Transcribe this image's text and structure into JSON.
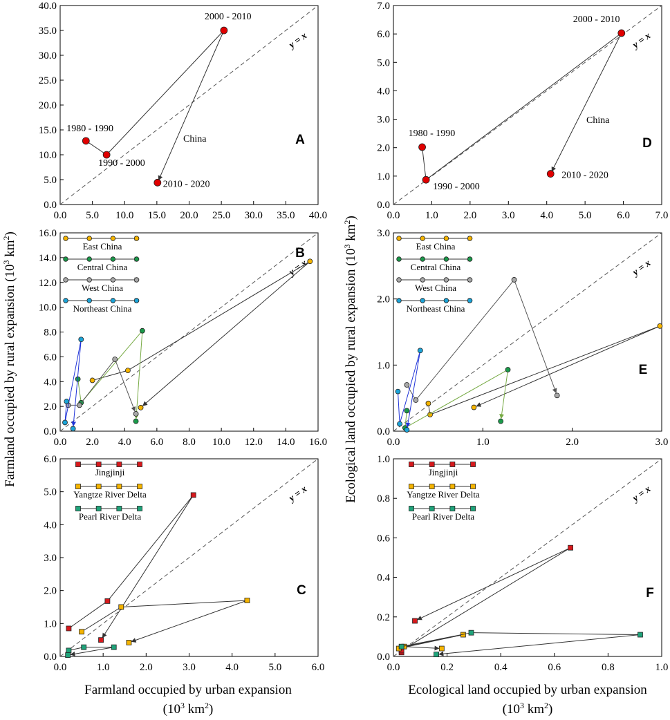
{
  "figure": {
    "y_label_left": "Farmland occupied by rural expansion (10",
    "y_label_right": "Ecological land occupied by rural expansion (10",
    "y_label_sup": "3",
    "y_label_tail": " km",
    "y_label_sup2": "2",
    "y_label_close": ")",
    "x_label_left_line1": "Farmland occupied by urban expansion",
    "x_label_right_line1": "Ecological land occupied by urban expansion",
    "x_label_line2_open": "(10",
    "x_label_line2_sup": "3",
    "x_label_line2_tail": " km",
    "x_label_line2_sup2": "2",
    "x_label_line2_close": ")",
    "diag_label": "y = x"
  },
  "colors": {
    "east": "#f5b400",
    "central": "#1a9a4a",
    "west": "#a8a8a8",
    "northeast": "#1ba4d8",
    "jingjinji": "#d7191c",
    "yangtze": "#f5b400",
    "pearl": "#1fa37a",
    "china": "#e00000",
    "blue_line": "#1f33d8",
    "green_line": "#77aa44"
  },
  "chart_data": [
    {
      "panel": "A",
      "type": "line",
      "xlim": [
        0,
        40
      ],
      "ylim": [
        0,
        40
      ],
      "xticks": [
        "0.0",
        "5.0",
        "10.0",
        "15.0",
        "20.0",
        "25.0",
        "30.0",
        "35.0",
        "40.0"
      ],
      "yticks": [
        "0.0",
        "5.0",
        "10.0",
        "15.0",
        "20.0",
        "25.0",
        "30.0",
        "35.0",
        "40.0"
      ],
      "series": [
        {
          "name": "China",
          "label": "China",
          "marker": "circle",
          "color": "#e00000",
          "line": "#333333",
          "points": [
            {
              "x": 4.0,
              "y": 12.8,
              "label": "1980 - 1990"
            },
            {
              "x": 7.2,
              "y": 10.0,
              "label": "1990 - 2000"
            },
            {
              "x": 25.4,
              "y": 35.0,
              "label": "2000 - 2010"
            },
            {
              "x": 15.1,
              "y": 4.4,
              "label": "2010 - 2020"
            }
          ]
        }
      ]
    },
    {
      "panel": "D",
      "type": "line",
      "xlim": [
        0,
        7
      ],
      "ylim": [
        0,
        7
      ],
      "xticks": [
        "0.0",
        "1.0",
        "2.0",
        "3.0",
        "4.0",
        "5.0",
        "6.0",
        "7.0"
      ],
      "yticks": [
        "0.0",
        "1.0",
        "2.0",
        "3.0",
        "4.0",
        "5.0",
        "6.0",
        "7.0"
      ],
      "series": [
        {
          "name": "China",
          "label": "China",
          "marker": "circle",
          "color": "#e00000",
          "line": "#333333",
          "points": [
            {
              "x": 0.75,
              "y": 2.02,
              "label": "1980 - 1990"
            },
            {
              "x": 0.85,
              "y": 0.87,
              "label": "1990 - 2000"
            },
            {
              "x": 5.95,
              "y": 6.03,
              "label": "2000 - 2010"
            },
            {
              "x": 4.1,
              "y": 1.08,
              "label": "2010 - 2020"
            }
          ]
        }
      ]
    },
    {
      "panel": "B",
      "type": "line",
      "xlim": [
        0,
        16
      ],
      "ylim": [
        0,
        16
      ],
      "xticks": [
        "0.0",
        "2.0",
        "4.0",
        "6.0",
        "8.0",
        "10.0",
        "12.0",
        "14.0",
        "16.0"
      ],
      "yticks": [
        "0.0",
        "2.0",
        "4.0",
        "6.0",
        "8.0",
        "10.0",
        "12.0",
        "14.0",
        "16.0"
      ],
      "legend": [
        "East China",
        "Central China",
        "West China",
        "Northeast China"
      ],
      "series": [
        {
          "name": "East China",
          "marker": "circle",
          "color": "#f5b400",
          "line": "#333333",
          "points": [
            {
              "x": 2.0,
              "y": 4.1
            },
            {
              "x": 4.2,
              "y": 4.9
            },
            {
              "x": 15.5,
              "y": 13.7
            },
            {
              "x": 5.0,
              "y": 1.9
            }
          ]
        },
        {
          "name": "Central China",
          "marker": "circle",
          "color": "#1a9a4a",
          "line": "#77aa44",
          "points": [
            {
              "x": 1.1,
              "y": 4.2
            },
            {
              "x": 1.3,
              "y": 2.3
            },
            {
              "x": 5.1,
              "y": 8.1
            },
            {
              "x": 4.7,
              "y": 0.8
            }
          ]
        },
        {
          "name": "West China",
          "marker": "circle",
          "color": "#a8a8a8",
          "line": "#555555",
          "points": [
            {
              "x": 0.5,
              "y": 2.1
            },
            {
              "x": 1.2,
              "y": 2.1
            },
            {
              "x": 3.4,
              "y": 5.8
            },
            {
              "x": 4.7,
              "y": 1.4
            }
          ]
        },
        {
          "name": "Northeast China",
          "marker": "circle",
          "color": "#1ba4d8",
          "line": "#1f33d8",
          "points": [
            {
              "x": 0.4,
              "y": 2.4
            },
            {
              "x": 0.3,
              "y": 0.7
            },
            {
              "x": 1.3,
              "y": 7.4
            },
            {
              "x": 0.8,
              "y": 0.2
            }
          ]
        }
      ]
    },
    {
      "panel": "E",
      "type": "line",
      "xlim": [
        0,
        3
      ],
      "ylim": [
        0,
        3
      ],
      "xticks": [
        "0.0",
        "1.0",
        "2.0",
        "3.0"
      ],
      "yticks": [
        "0.0",
        "1.0",
        "2.0",
        "3.0"
      ],
      "legend": [
        "East China",
        "Central China",
        "West China",
        "Northeast China"
      ],
      "series": [
        {
          "name": "East China",
          "marker": "circle",
          "color": "#f5b400",
          "line": "#333333",
          "points": [
            {
              "x": 0.39,
              "y": 0.42
            },
            {
              "x": 0.41,
              "y": 0.25
            },
            {
              "x": 2.98,
              "y": 1.59
            },
            {
              "x": 0.9,
              "y": 0.36
            }
          ]
        },
        {
          "name": "Central China",
          "marker": "circle",
          "color": "#1a9a4a",
          "line": "#77aa44",
          "points": [
            {
              "x": 0.15,
              "y": 0.31
            },
            {
              "x": 0.13,
              "y": 0.05
            },
            {
              "x": 1.28,
              "y": 0.93
            },
            {
              "x": 1.2,
              "y": 0.15
            }
          ]
        },
        {
          "name": "West China",
          "marker": "circle",
          "color": "#a8a8a8",
          "line": "#555555",
          "points": [
            {
              "x": 0.15,
              "y": 0.7
            },
            {
              "x": 0.25,
              "y": 0.47
            },
            {
              "x": 1.35,
              "y": 2.29
            },
            {
              "x": 1.83,
              "y": 0.54
            }
          ]
        },
        {
          "name": "Northeast China",
          "marker": "circle",
          "color": "#1ba4d8",
          "line": "#1f33d8",
          "points": [
            {
              "x": 0.05,
              "y": 0.6
            },
            {
              "x": 0.07,
              "y": 0.11
            },
            {
              "x": 0.3,
              "y": 1.22
            },
            {
              "x": 0.15,
              "y": 0.02
            }
          ]
        }
      ]
    },
    {
      "panel": "C",
      "type": "line",
      "xlim": [
        0,
        6
      ],
      "ylim": [
        0,
        6
      ],
      "xticks": [
        "0.0",
        "1.0",
        "2.0",
        "3.0",
        "4.0",
        "5.0",
        "6.0"
      ],
      "yticks": [
        "0.0",
        "1.0",
        "2.0",
        "3.0",
        "4.0",
        "5.0",
        "6.0"
      ],
      "legend": [
        "Jingjinji",
        "Yangtze River Delta",
        "Pearl River Delta"
      ],
      "series": [
        {
          "name": "Jingjinji",
          "marker": "square",
          "color": "#d7191c",
          "line": "#333333",
          "points": [
            {
              "x": 0.2,
              "y": 0.85
            },
            {
              "x": 1.1,
              "y": 1.68
            },
            {
              "x": 3.1,
              "y": 4.9
            },
            {
              "x": 0.95,
              "y": 0.5
            }
          ]
        },
        {
          "name": "Yangtze River Delta",
          "marker": "square",
          "color": "#f5b400",
          "line": "#333333",
          "points": [
            {
              "x": 0.5,
              "y": 0.75
            },
            {
              "x": 1.42,
              "y": 1.5
            },
            {
              "x": 4.35,
              "y": 1.7
            },
            {
              "x": 1.6,
              "y": 0.42
            }
          ]
        },
        {
          "name": "Pearl River Delta",
          "marker": "square",
          "color": "#1fa37a",
          "line": "#333333",
          "points": [
            {
              "x": 0.2,
              "y": 0.18
            },
            {
              "x": 0.55,
              "y": 0.28
            },
            {
              "x": 1.25,
              "y": 0.28
            },
            {
              "x": 0.18,
              "y": 0.04
            }
          ]
        }
      ]
    },
    {
      "panel": "F",
      "type": "line",
      "xlim": [
        0,
        1
      ],
      "ylim": [
        0,
        1
      ],
      "xticks": [
        "0.0",
        "0.2",
        "0.4",
        "0.6",
        "0.8",
        "1.0"
      ],
      "yticks": [
        "0.0",
        "0.2",
        "0.4",
        "0.6",
        "0.8",
        "1.0"
      ],
      "legend": [
        "Jingjinji",
        "Yangtze River Delta",
        "Pearl River Delta"
      ],
      "series": [
        {
          "name": "Jingjinji",
          "marker": "square",
          "color": "#d7191c",
          "line": "#333333",
          "points": [
            {
              "x": 0.03,
              "y": 0.02
            },
            {
              "x": 0.03,
              "y": 0.03
            },
            {
              "x": 0.66,
              "y": 0.55
            },
            {
              "x": 0.08,
              "y": 0.18
            }
          ]
        },
        {
          "name": "Yangtze River Delta",
          "marker": "square",
          "color": "#f5b400",
          "line": "#333333",
          "points": [
            {
              "x": 0.02,
              "y": 0.04
            },
            {
              "x": 0.26,
              "y": 0.11
            },
            {
              "x": 0.04,
              "y": 0.05
            },
            {
              "x": 0.18,
              "y": 0.04
            }
          ]
        },
        {
          "name": "Pearl River Delta",
          "marker": "square",
          "color": "#1fa37a",
          "line": "#333333",
          "points": [
            {
              "x": 0.03,
              "y": 0.05
            },
            {
              "x": 0.29,
              "y": 0.12
            },
            {
              "x": 0.92,
              "y": 0.11
            },
            {
              "x": 0.16,
              "y": 0.01
            }
          ]
        }
      ]
    }
  ]
}
